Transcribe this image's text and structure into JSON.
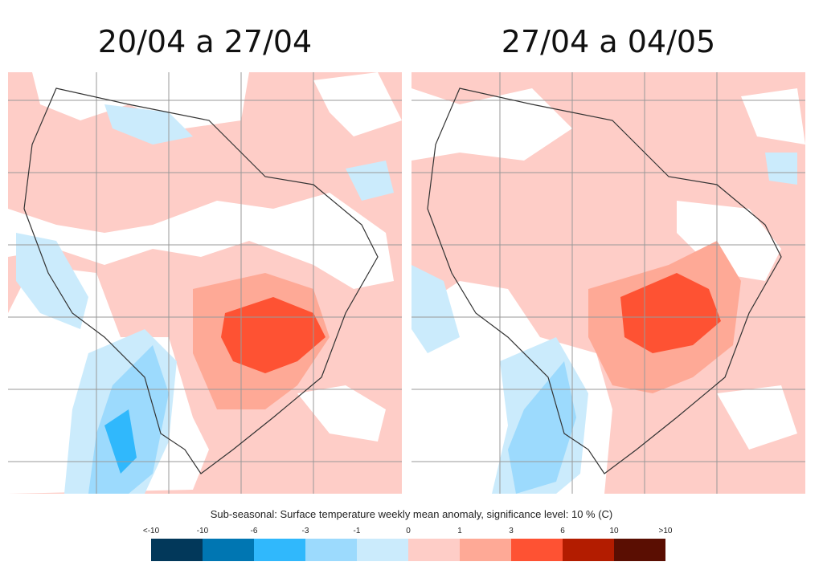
{
  "panels": [
    {
      "title": "20/04 a 27/04"
    },
    {
      "title": "27/04 a 04/05"
    }
  ],
  "legend": {
    "title": "Sub-seasonal: Surface temperature weekly mean anomaly, significance level: 10 % (C)",
    "ticks": [
      "<-10",
      "-10",
      "-6",
      "-3",
      "-1",
      "0",
      "1",
      "3",
      "6",
      "10",
      ">10"
    ],
    "colors": [
      "#02385a",
      "#0076b2",
      "#30b8fc",
      "#9cdafd",
      "#cbebfc",
      "#fecdc7",
      "#fea996",
      "#fe5233",
      "#b31c00",
      "#5a0e02"
    ]
  }
}
